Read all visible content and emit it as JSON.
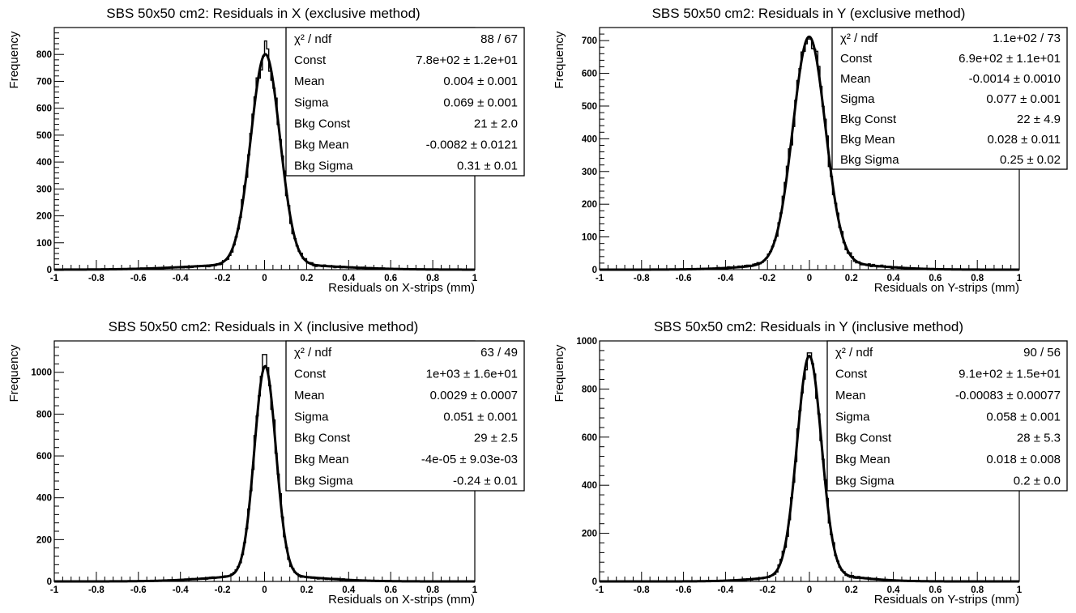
{
  "chart_data": [
    {
      "type": "histogram",
      "title": "SBS 50x50 cm2: Residuals in X (exclusive method)",
      "xlabel": "Residuals on X-strips (mm)",
      "ylabel": "Frequency",
      "xlim": [
        -1,
        1
      ],
      "ylim": [
        0,
        900
      ],
      "xticks": [
        "-1",
        "-0.8",
        "-0.6",
        "-0.4",
        "-0.2",
        "0",
        "0.2",
        "0.4",
        "0.6",
        "0.8",
        "1"
      ],
      "yticks": [
        0,
        100,
        200,
        300,
        400,
        500,
        600,
        700,
        800
      ],
      "peak_bin_max": 850,
      "fit": {
        "const": 780,
        "mean": 0.004,
        "sigma": 0.069,
        "bkg_const": 21,
        "bkg_mean": -0.0082,
        "bkg_sigma": 0.31
      },
      "stats": [
        {
          "label": "χ² / ndf",
          "value": "88 / 67"
        },
        {
          "label": "Const",
          "value": "7.8e+02 ± 1.2e+01"
        },
        {
          "label": "Mean",
          "value": "0.004 ± 0.001"
        },
        {
          "label": "Sigma",
          "value": "0.069 ± 0.001"
        },
        {
          "label": "Bkg Const",
          "value": "21 ± 2.0"
        },
        {
          "label": "Bkg Mean",
          "value": "-0.0082 ± 0.0121"
        },
        {
          "label": "Bkg Sigma",
          "value": "0.31 ± 0.01"
        }
      ]
    },
    {
      "type": "histogram",
      "title": "SBS 50x50 cm2: Residuals in Y (exclusive method)",
      "xlabel": "Residuals on Y-strips (mm)",
      "ylabel": "Frequency",
      "xlim": [
        -1,
        1
      ],
      "ylim": [
        0,
        740
      ],
      "xticks": [
        "-1",
        "-0.8",
        "-0.6",
        "-0.4",
        "-0.2",
        "0",
        "0.2",
        "0.4",
        "0.6",
        "0.8",
        "1"
      ],
      "yticks": [
        0,
        100,
        200,
        300,
        400,
        500,
        600,
        700
      ],
      "peak_bin_max": 705,
      "fit": {
        "const": 690,
        "mean": -0.0014,
        "sigma": 0.077,
        "bkg_const": 22,
        "bkg_mean": 0.028,
        "bkg_sigma": 0.25
      },
      "stats": [
        {
          "label": "χ² / ndf",
          "value": "1.1e+02 / 73"
        },
        {
          "label": "Const",
          "value": "6.9e+02 ± 1.1e+01"
        },
        {
          "label": "Mean",
          "value": "-0.0014 ± 0.0010"
        },
        {
          "label": "Sigma",
          "value": "0.077 ± 0.001"
        },
        {
          "label": "Bkg Const",
          "value": "22 ± 4.9"
        },
        {
          "label": "Bkg Mean",
          "value": "0.028 ± 0.011"
        },
        {
          "label": "Bkg Sigma",
          "value": "0.25 ± 0.02"
        }
      ]
    },
    {
      "type": "histogram",
      "title": "SBS 50x50 cm2: Residuals in X (inclusive method)",
      "xlabel": "Residuals on X-strips (mm)",
      "ylabel": "Frequency",
      "xlim": [
        -1,
        1
      ],
      "ylim": [
        0,
        1150
      ],
      "xticks": [
        "-1",
        "-0.8",
        "-0.6",
        "-0.4",
        "-0.2",
        "0",
        "0.2",
        "0.4",
        "0.6",
        "0.8",
        "1"
      ],
      "yticks": [
        0,
        200,
        400,
        600,
        800,
        1000
      ],
      "peak_bin_max": 1085,
      "fit": {
        "const": 1000,
        "mean": 0.0029,
        "sigma": 0.051,
        "bkg_const": 29,
        "bkg_mean": -4e-05,
        "bkg_sigma": 0.24
      },
      "stats": [
        {
          "label": "χ² / ndf",
          "value": "63 / 49"
        },
        {
          "label": "Const",
          "value": "1e+03 ± 1.6e+01"
        },
        {
          "label": "Mean",
          "value": "0.0029 ± 0.0007"
        },
        {
          "label": "Sigma",
          "value": "0.051 ± 0.001"
        },
        {
          "label": "Bkg Const",
          "value": "29 ± 2.5"
        },
        {
          "label": "Bkg Mean",
          "value": "-4e-05 ± 9.03e-03"
        },
        {
          "label": "Bkg Sigma",
          "value": "-0.24 ± 0.01"
        }
      ]
    },
    {
      "type": "histogram",
      "title": "SBS 50x50 cm2: Residuals in Y (inclusive method)",
      "xlabel": "Residuals on Y-strips (mm)",
      "ylabel": "Frequency",
      "xlim": [
        -1,
        1
      ],
      "ylim": [
        0,
        1000
      ],
      "xticks": [
        "-1",
        "-0.8",
        "-0.6",
        "-0.4",
        "-0.2",
        "0",
        "0.2",
        "0.4",
        "0.6",
        "0.8",
        "1"
      ],
      "yticks": [
        0,
        200,
        400,
        600,
        800,
        1000
      ],
      "peak_bin_max": 950,
      "fit": {
        "const": 910,
        "mean": -0.00083,
        "sigma": 0.058,
        "bkg_const": 28,
        "bkg_mean": 0.018,
        "bkg_sigma": 0.2
      },
      "stats": [
        {
          "label": "χ² / ndf",
          "value": "90 / 56"
        },
        {
          "label": "Const",
          "value": "9.1e+02 ± 1.5e+01"
        },
        {
          "label": "Mean",
          "value": "-0.00083 ± 0.00077"
        },
        {
          "label": "Sigma",
          "value": "0.058 ± 0.001"
        },
        {
          "label": "Bkg Const",
          "value": "28 ± 5.3"
        },
        {
          "label": "Bkg Mean",
          "value": "0.018 ± 0.008"
        },
        {
          "label": "Bkg Sigma",
          "value": "0.2 ± 0.0"
        }
      ]
    }
  ]
}
